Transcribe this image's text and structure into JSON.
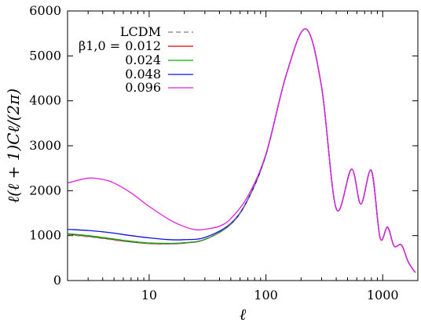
{
  "chart_data": {
    "type": "line",
    "title": "",
    "xlabel": "ℓ",
    "ylabel": "ℓ(ℓ + 1)Cℓ/(2π)",
    "xscale": "log",
    "xlim": [
      2,
      2000
    ],
    "ylim": [
      0,
      6000
    ],
    "xticks": [
      10,
      100,
      1000
    ],
    "xtick_labels": [
      "10",
      "100",
      "1000"
    ],
    "yticks": [
      0,
      1000,
      2000,
      3000,
      4000,
      5000,
      6000
    ],
    "ytick_labels": [
      "0",
      "1000",
      "2000",
      "3000",
      "4000",
      "5000",
      "6000"
    ],
    "grid": false,
    "legend_position": "top-left",
    "legend_param_label": "β1,0 =",
    "series": [
      {
        "name": "LCDM",
        "color": "#808080",
        "dash": "dashed",
        "x": [
          2,
          3,
          4,
          5,
          7,
          10,
          15,
          20,
          30,
          50,
          70,
          100,
          150,
          220,
          300,
          400,
          540,
          650,
          800,
          950,
          1100,
          1250,
          1450,
          1650,
          1900
        ],
        "y": [
          1020,
          975,
          935,
          900,
          855,
          820,
          815,
          830,
          910,
          1250,
          1800,
          2800,
          4600,
          5600,
          4300,
          1600,
          2480,
          1700,
          2450,
          950,
          1190,
          770,
          790,
          420,
          180
        ]
      },
      {
        "name": "0.012",
        "color": "#e00000",
        "dash": "solid",
        "x": [
          2,
          3,
          4,
          5,
          7,
          10,
          15,
          20,
          30,
          50,
          70,
          100,
          150,
          220,
          300,
          400,
          540,
          650,
          800,
          950,
          1100,
          1250,
          1450,
          1650,
          1900
        ],
        "y": [
          1030,
          985,
          945,
          910,
          862,
          825,
          818,
          833,
          912,
          1252,
          1800,
          2800,
          4600,
          5600,
          4300,
          1600,
          2480,
          1700,
          2450,
          950,
          1190,
          770,
          790,
          420,
          180
        ]
      },
      {
        "name": "0.024",
        "color": "#00b000",
        "dash": "solid",
        "x": [
          2,
          3,
          4,
          5,
          7,
          10,
          15,
          20,
          30,
          50,
          70,
          100,
          150,
          220,
          300,
          400,
          540,
          650,
          800,
          950,
          1100,
          1250,
          1450,
          1650,
          1900
        ],
        "y": [
          1045,
          1000,
          960,
          925,
          875,
          838,
          828,
          842,
          918,
          1256,
          1802,
          2800,
          4600,
          5600,
          4300,
          1600,
          2480,
          1700,
          2450,
          950,
          1190,
          770,
          790,
          420,
          180
        ]
      },
      {
        "name": "0.048",
        "color": "#1010e0",
        "dash": "solid",
        "x": [
          2,
          3,
          4,
          5,
          7,
          10,
          15,
          20,
          30,
          50,
          70,
          100,
          150,
          220,
          300,
          400,
          540,
          650,
          800,
          950,
          1100,
          1250,
          1450,
          1650,
          1900
        ],
        "y": [
          1140,
          1115,
          1085,
          1055,
          1000,
          950,
          910,
          910,
          960,
          1270,
          1810,
          2805,
          4600,
          5600,
          4300,
          1600,
          2480,
          1700,
          2450,
          950,
          1190,
          770,
          790,
          420,
          180
        ]
      },
      {
        "name": "0.096",
        "color": "#e020e0",
        "dash": "solid",
        "x": [
          2,
          3,
          4,
          5,
          7,
          10,
          15,
          20,
          25,
          30,
          40,
          50,
          70,
          100,
          150,
          220,
          300,
          400,
          540,
          650,
          800,
          950,
          1100,
          1250,
          1450,
          1650,
          1900
        ],
        "y": [
          2170,
          2280,
          2250,
          2170,
          1950,
          1650,
          1350,
          1200,
          1130,
          1140,
          1210,
          1380,
          1880,
          2820,
          4600,
          5600,
          4300,
          1600,
          2480,
          1700,
          2450,
          950,
          1190,
          770,
          790,
          420,
          180
        ]
      }
    ]
  }
}
